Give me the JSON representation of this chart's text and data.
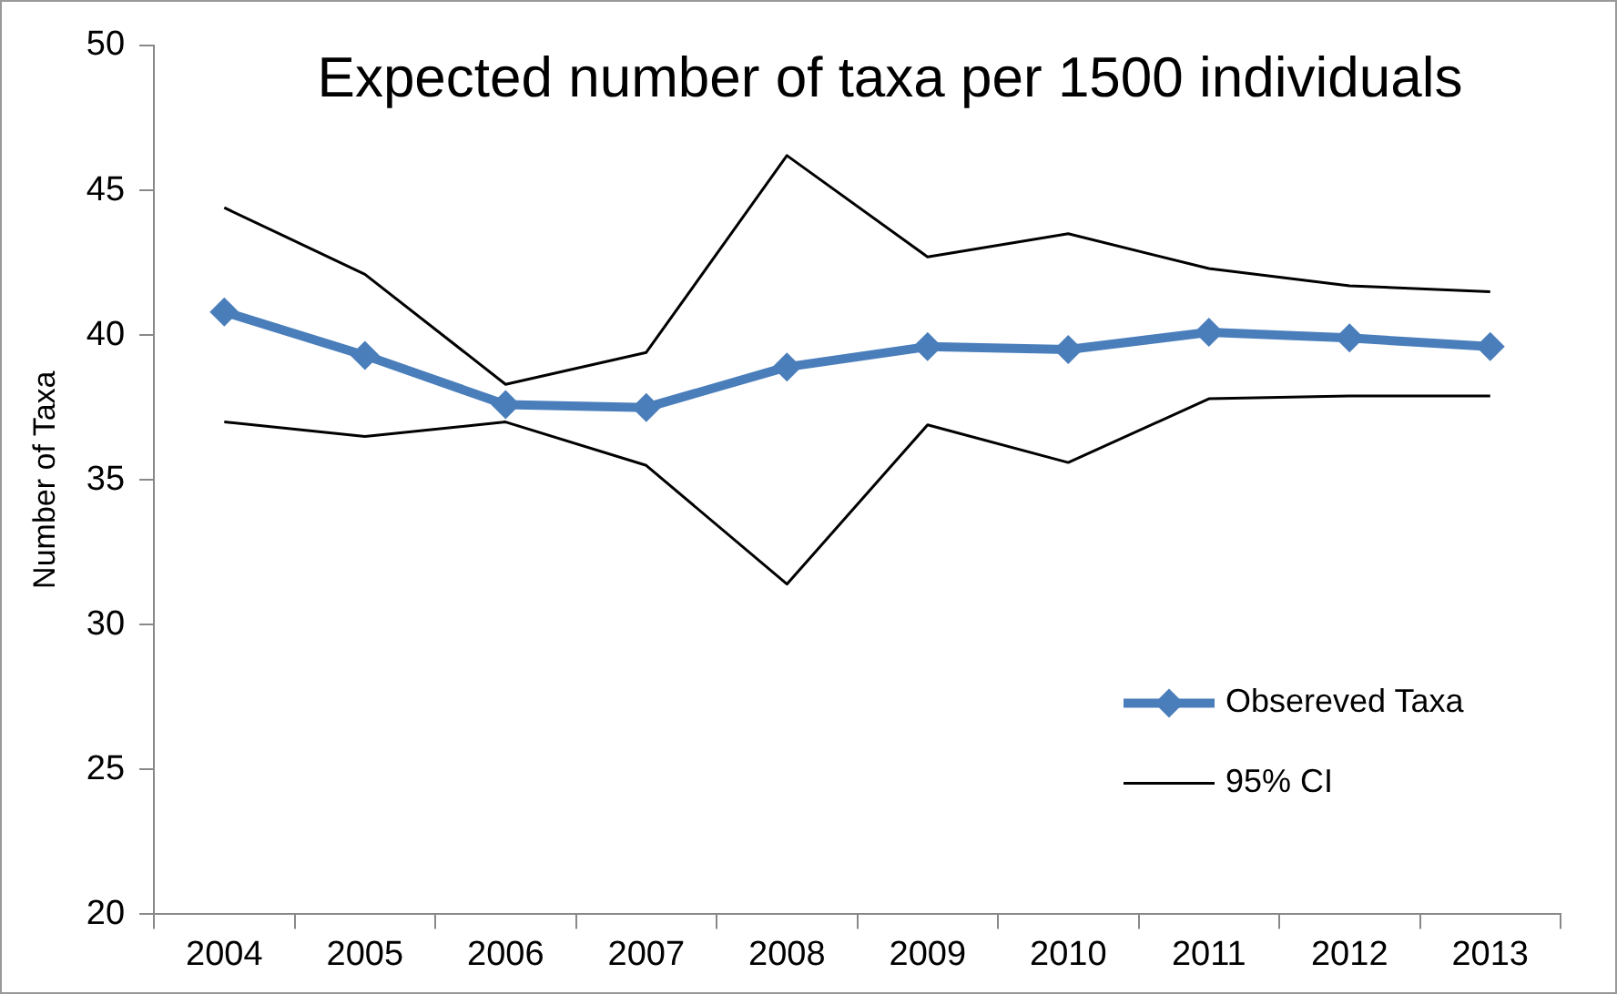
{
  "chart_data": {
    "type": "line",
    "title": "Expected number of taxa per 1500 individuals",
    "ylabel": "Number of Taxa",
    "categories": [
      "2004",
      "2005",
      "2006",
      "2007",
      "2008",
      "2009",
      "2010",
      "2011",
      "2012",
      "2013"
    ],
    "series": [
      {
        "name": "Obsereved Taxa",
        "color": "#4a7ebb",
        "marker": "diamond",
        "values": [
          40.8,
          39.3,
          37.6,
          37.5,
          38.9,
          39.6,
          39.5,
          40.1,
          39.9,
          39.6
        ]
      },
      {
        "name": "95% CI",
        "color": "#000000",
        "marker": "none",
        "values": [
          44.4,
          42.1,
          38.3,
          39.4,
          46.2,
          42.7,
          43.5,
          42.3,
          41.7,
          41.5
        ]
      },
      {
        "color": "#000000",
        "marker": "none",
        "values": [
          37.0,
          36.5,
          37.0,
          35.5,
          31.4,
          36.9,
          35.6,
          37.8,
          37.9,
          37.9
        ]
      }
    ],
    "ylim": [
      20,
      50
    ],
    "yticks": [
      20,
      25,
      30,
      35,
      40,
      45,
      50
    ],
    "grid": false,
    "legend": "bottom right"
  }
}
